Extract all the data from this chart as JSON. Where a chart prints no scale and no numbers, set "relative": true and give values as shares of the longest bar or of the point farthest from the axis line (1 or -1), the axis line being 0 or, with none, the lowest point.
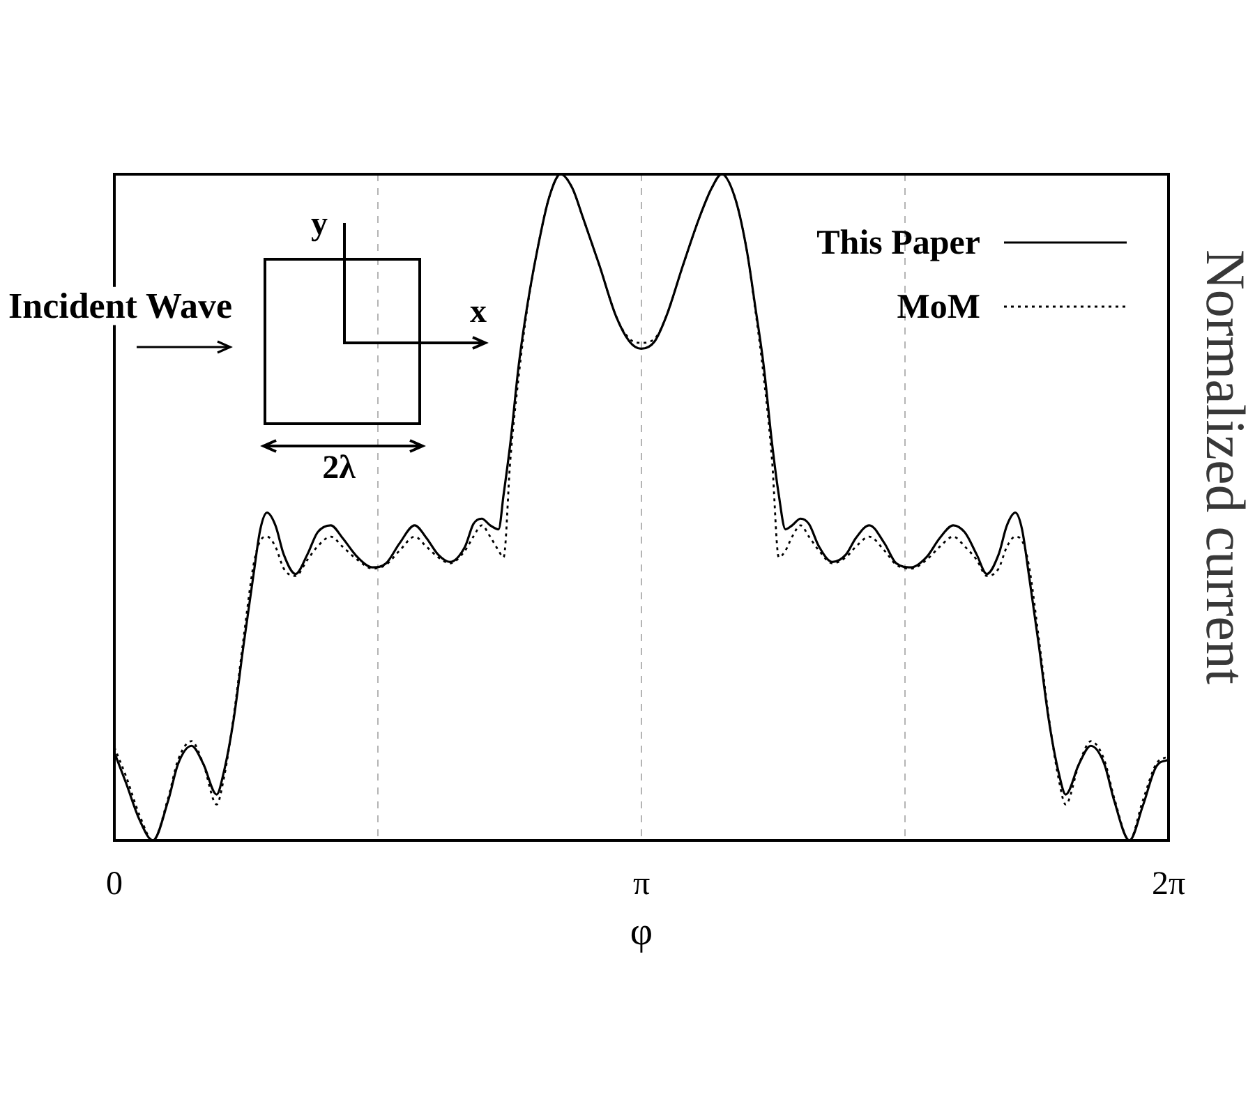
{
  "chart_data": {
    "type": "line",
    "xlabel": "φ",
    "ylabel": "Normalized current",
    "relative": true,
    "annotations": [
      "Incident Wave",
      "y",
      "x",
      "2λ"
    ],
    "xlim": [
      0,
      6.2832
    ],
    "xticks": [
      0,
      {
        "value": 1.5708,
        "label": null
      },
      {
        "value": 3.1416,
        "label": "π"
      },
      {
        "value": 4.7124,
        "label": null
      },
      {
        "value": 6.2832,
        "label": "2π"
      }
    ],
    "x": [
      0,
      0.07,
      0.15,
      0.23,
      0.32,
      0.38,
      0.46,
      0.53,
      0.61,
      0.65,
      0.71,
      0.77,
      0.83,
      0.87,
      0.91,
      0.96,
      1.01,
      1.08,
      1.15,
      1.21,
      1.29,
      1.36,
      1.45,
      1.54,
      1.62,
      1.7,
      1.79,
      1.86,
      1.93,
      2.0,
      2.09,
      2.14,
      2.19,
      2.24,
      2.29,
      2.32,
      2.36,
      2.41,
      2.46,
      2.52,
      2.59,
      2.66,
      2.73,
      2.79,
      2.89,
      2.99,
      3.07,
      3.14,
      3.22,
      3.29,
      3.39,
      3.49,
      3.56,
      3.62,
      3.7,
      3.77,
      3.82,
      3.87,
      3.92,
      3.96,
      4.0,
      4.04,
      4.09,
      4.14,
      4.2,
      4.28,
      4.36,
      4.42,
      4.5,
      4.59,
      4.66,
      4.75,
      4.84,
      4.92,
      5.0,
      5.07,
      5.14,
      5.2,
      5.27,
      5.32,
      5.37,
      5.41,
      5.45,
      5.51,
      5.57,
      5.63,
      5.67,
      5.75,
      5.82,
      5.9,
      5.96,
      6.05,
      6.13,
      6.21,
      6.28
    ],
    "series": [
      {
        "name": "This Paper",
        "color": "#000000",
        "line_style": "solid",
        "values": [
          0.132,
          0.086,
          0.031,
          0,
          0.059,
          0.115,
          0.142,
          0.115,
          0.069,
          0.1,
          0.18,
          0.293,
          0.4,
          0.467,
          0.492,
          0.473,
          0.429,
          0.4,
          0.429,
          0.462,
          0.473,
          0.454,
          0.425,
          0.41,
          0.416,
          0.446,
          0.473,
          0.454,
          0.429,
          0.418,
          0.441,
          0.475,
          0.483,
          0.473,
          0.467,
          0.519,
          0.596,
          0.713,
          0.801,
          0.885,
          0.964,
          1.0,
          0.979,
          0.937,
          0.864,
          0.787,
          0.749,
          0.738,
          0.749,
          0.787,
          0.864,
          0.937,
          0.979,
          1.0,
          0.964,
          0.885,
          0.801,
          0.713,
          0.596,
          0.519,
          0.467,
          0.473,
          0.483,
          0.475,
          0.441,
          0.418,
          0.429,
          0.454,
          0.473,
          0.446,
          0.416,
          0.41,
          0.425,
          0.454,
          0.473,
          0.462,
          0.429,
          0.4,
          0.429,
          0.473,
          0.492,
          0.467,
          0.4,
          0.293,
          0.18,
          0.1,
          0.069,
          0.115,
          0.142,
          0.115,
          0.059,
          0,
          0.052,
          0.111,
          0.121
        ]
      },
      {
        "name": "MoM",
        "color": "#000000",
        "line_style": "dotted",
        "values": [
          0.14,
          0.096,
          0.038,
          0,
          0.063,
          0.121,
          0.149,
          0.115,
          0.054,
          0.09,
          0.184,
          0.303,
          0.414,
          0.45,
          0.456,
          0.441,
          0.408,
          0.397,
          0.421,
          0.441,
          0.456,
          0.441,
          0.421,
          0.408,
          0.414,
          0.435,
          0.456,
          0.441,
          0.425,
          0.416,
          0.435,
          0.456,
          0.473,
          0.456,
          0.435,
          0.425,
          0.571,
          0.697,
          0.797,
          0.885,
          0.964,
          1.0,
          0.979,
          0.937,
          0.864,
          0.787,
          0.753,
          0.747,
          0.753,
          0.787,
          0.864,
          0.937,
          0.979,
          1.0,
          0.964,
          0.885,
          0.797,
          0.697,
          0.571,
          0.425,
          0.435,
          0.456,
          0.473,
          0.456,
          0.435,
          0.416,
          0.425,
          0.441,
          0.456,
          0.435,
          0.414,
          0.408,
          0.421,
          0.441,
          0.456,
          0.441,
          0.421,
          0.397,
          0.408,
          0.441,
          0.456,
          0.45,
          0.414,
          0.303,
          0.184,
          0.09,
          0.054,
          0.115,
          0.149,
          0.121,
          0.063,
          0,
          0.06,
          0.115,
          0.126
        ]
      }
    ],
    "grid": "x",
    "legend": "top right",
    "marker": "none"
  }
}
